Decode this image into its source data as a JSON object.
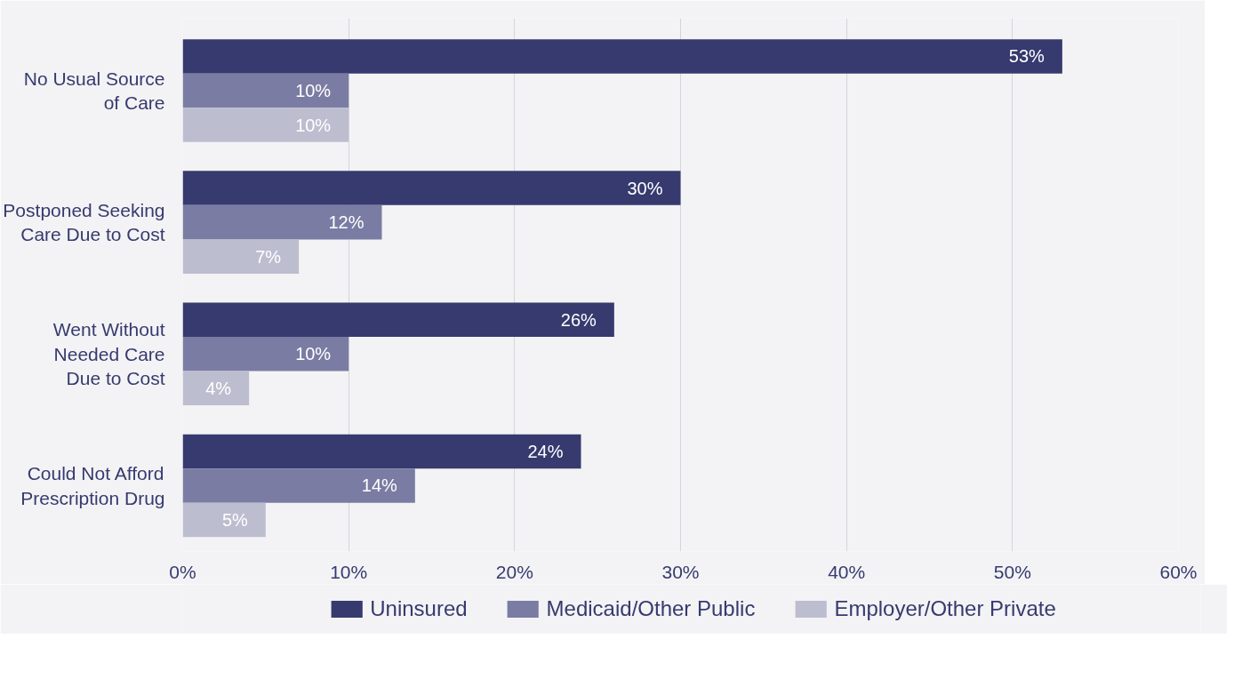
{
  "chart_data": {
    "type": "bar",
    "orientation": "horizontal",
    "categories": [
      "No Usual Source\nof Care",
      "Postponed Seeking\nCare Due to Cost",
      "Went Without\nNeeded Care\nDue to Cost",
      "Could Not Afford\nPrescription Drug"
    ],
    "series": [
      {
        "name": "Uninsured",
        "color": "#363a6e",
        "values": [
          53,
          30,
          26,
          24
        ],
        "value_labels": [
          "53%",
          "30%",
          "26%",
          "24%"
        ]
      },
      {
        "name": "Medicaid/Other Public",
        "color": "#7b7ca3",
        "values": [
          10,
          12,
          10,
          14
        ],
        "value_labels": [
          "10%",
          "12%",
          "10%",
          "14%"
        ]
      },
      {
        "name": "Employer/Other Private",
        "color": "#bdbdd0",
        "values": [
          10,
          7,
          4,
          5
        ],
        "value_labels": [
          "10%",
          "7%",
          "4%",
          "5%"
        ]
      }
    ],
    "xlim": [
      0,
      60
    ],
    "xticks": [
      {
        "value": 0,
        "label": "0%"
      },
      {
        "value": 10,
        "label": "10%"
      },
      {
        "value": 20,
        "label": "20%"
      },
      {
        "value": 30,
        "label": "30%"
      },
      {
        "value": 40,
        "label": "40%"
      },
      {
        "value": 50,
        "label": "50%"
      },
      {
        "value": 60,
        "label": "60%"
      }
    ],
    "grid": "x",
    "legend": "bottom"
  }
}
